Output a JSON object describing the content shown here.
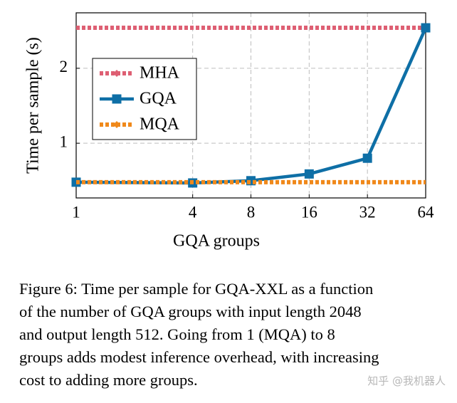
{
  "chart_data": {
    "type": "line",
    "xlabel": "GQA groups",
    "ylabel": "Time per sample (s)",
    "x": [
      1,
      4,
      8,
      16,
      32,
      64
    ],
    "series": [
      {
        "name": "MHA",
        "color": "#de5f73",
        "style": "dotted",
        "marker": "diamond",
        "values": [
          2.54,
          2.54,
          2.54,
          2.54,
          2.54,
          2.54
        ]
      },
      {
        "name": "GQA",
        "color": "#0e6fa6",
        "style": "solid",
        "marker": "square",
        "values": [
          0.48,
          0.47,
          0.5,
          0.59,
          0.8,
          2.54
        ]
      },
      {
        "name": "MQA",
        "color": "#f0891b",
        "style": "dotted",
        "marker": "diamond",
        "values": [
          0.48,
          0.48,
          0.48,
          0.48,
          0.48,
          0.48
        ]
      }
    ],
    "xscale": "log",
    "xlim": [
      1,
      64
    ],
    "xticks": [
      1,
      4,
      8,
      16,
      32,
      64
    ],
    "ylim": [
      0.27,
      2.74
    ],
    "yticks": [
      1,
      2
    ],
    "grid": true,
    "legend": "upper left"
  },
  "caption": [
    "Figure 6: Time per sample for GQA-XXL as a function",
    "of the number of GQA groups with input length 2048",
    "and output length 512.  Going from 1 (MQA) to 8",
    "groups adds modest inference overhead, with increasing",
    "cost to adding more groups."
  ],
  "watermark": "知乎 @我机器人"
}
